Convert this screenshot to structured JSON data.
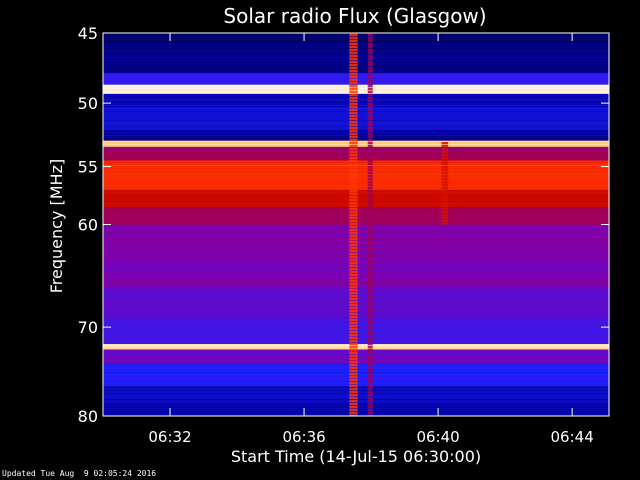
{
  "chart_data": {
    "type": "heatmap",
    "title": "Solar radio Flux (Glasgow)",
    "xlabel": "Start Time (14-Jul-15 06:30:00)",
    "ylabel": "Frequency [MHz]",
    "x_unit": "minutes after 06:30:00",
    "xlim": [
      0,
      15.1
    ],
    "ylim": [
      45,
      80
    ],
    "y_scale": "log",
    "x_ticks": [
      {
        "value": 2,
        "label": "06:32"
      },
      {
        "value": 6,
        "label": "06:36"
      },
      {
        "value": 10,
        "label": "06:40"
      },
      {
        "value": 14,
        "label": "06:44"
      }
    ],
    "y_ticks": [
      {
        "value": 45,
        "label": "45"
      },
      {
        "value": 50,
        "label": "50"
      },
      {
        "value": 55,
        "label": "55"
      },
      {
        "value": 60,
        "label": "60"
      },
      {
        "value": 70,
        "label": "70"
      },
      {
        "value": 80,
        "label": "80"
      }
    ],
    "frequency_bands": [
      {
        "f0": 45.0,
        "f1": 45.6,
        "level": 0.08
      },
      {
        "f0": 45.6,
        "f1": 47.8,
        "level": 0.12
      },
      {
        "f0": 47.8,
        "f1": 48.6,
        "level": 0.32
      },
      {
        "f0": 48.6,
        "f1": 49.3,
        "level": 0.98
      },
      {
        "f0": 49.3,
        "f1": 50.3,
        "level": 0.18
      },
      {
        "f0": 50.3,
        "f1": 52.0,
        "level": 0.22
      },
      {
        "f0": 52.0,
        "f1": 52.9,
        "level": 0.14
      },
      {
        "f0": 52.9,
        "f1": 53.4,
        "level": 0.9
      },
      {
        "f0": 53.4,
        "f1": 54.5,
        "level": 0.5
      },
      {
        "f0": 54.5,
        "f1": 57.0,
        "level": 0.7
      },
      {
        "f0": 57.0,
        "f1": 58.5,
        "level": 0.6
      },
      {
        "f0": 58.5,
        "f1": 60.0,
        "level": 0.5
      },
      {
        "f0": 60.0,
        "f1": 63.0,
        "level": 0.44
      },
      {
        "f0": 63.0,
        "f1": 66.0,
        "level": 0.42
      },
      {
        "f0": 66.0,
        "f1": 69.0,
        "level": 0.38
      },
      {
        "f0": 69.0,
        "f1": 71.8,
        "level": 0.34
      },
      {
        "f0": 71.8,
        "f1": 72.4,
        "level": 0.95
      },
      {
        "f0": 72.4,
        "f1": 74.0,
        "level": 0.4
      },
      {
        "f0": 74.0,
        "f1": 76.5,
        "level": 0.28
      },
      {
        "f0": 76.5,
        "f1": 78.5,
        "level": 0.2
      },
      {
        "f0": 78.5,
        "f1": 80.0,
        "level": 0.16
      }
    ],
    "time_features": [
      {
        "t0": 7.35,
        "t1": 7.6,
        "f0": 45,
        "f1": 80,
        "level": 0.72
      },
      {
        "t0": 7.9,
        "t1": 8.05,
        "f0": 45,
        "f1": 80,
        "level": 0.5
      },
      {
        "t0": 10.1,
        "t1": 10.3,
        "f0": 53,
        "f1": 60,
        "level": 0.62
      }
    ],
    "colorscale": [
      "#00001e",
      "#0000a0",
      "#2020ff",
      "#8000b0",
      "#c00000",
      "#ff3000",
      "#ffb040",
      "#ffffff"
    ]
  },
  "footer": {
    "updated": "Updated Tue Aug  9 02:05:24 2016"
  }
}
